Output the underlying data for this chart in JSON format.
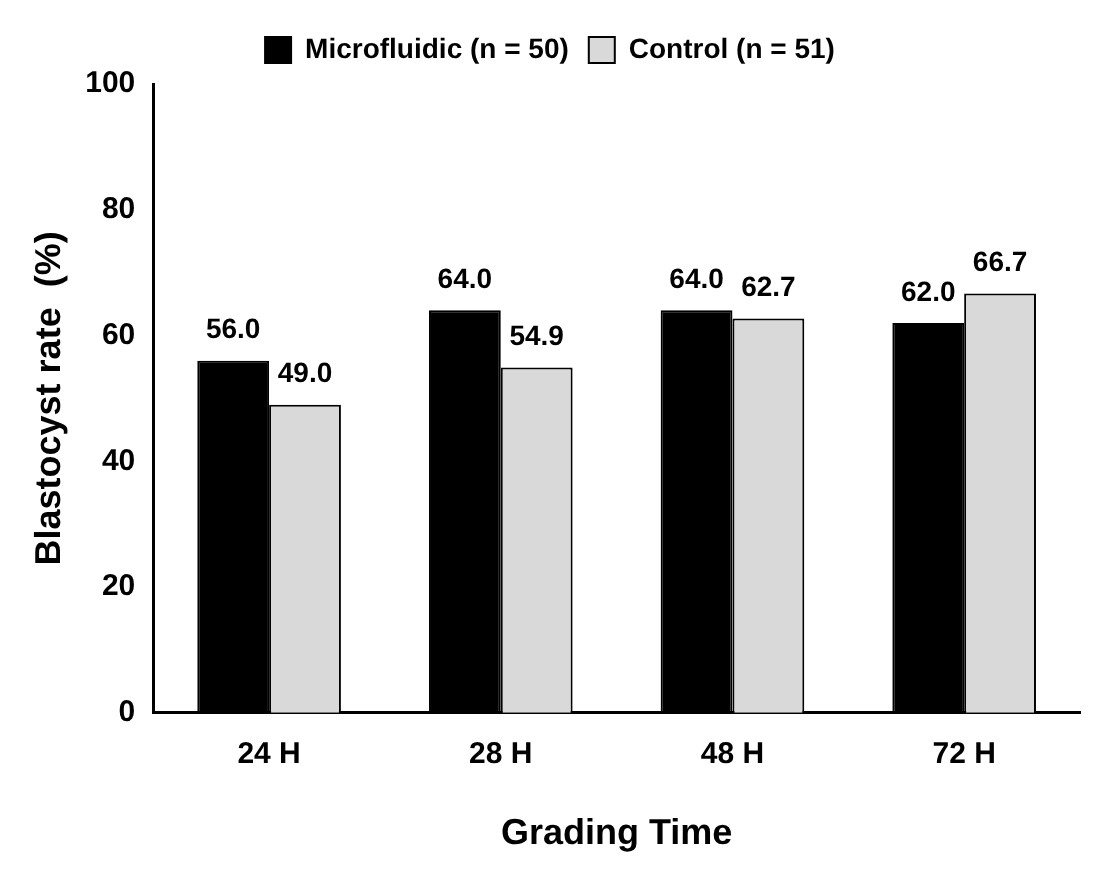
{
  "chart_data": {
    "type": "bar",
    "xlabel": "Grading Time",
    "ylabel": "Blastocyst rate  (%)",
    "categories": [
      "24 H",
      "28 H",
      "48 H",
      "72 H"
    ],
    "series": [
      {
        "name": "Microfluidic (n = 50)",
        "color": "#000000",
        "values": [
          56.0,
          64.0,
          64.0,
          62.0
        ],
        "value_labels": [
          "56.0",
          "64.0",
          "64.0",
          "62.0"
        ]
      },
      {
        "name": "Control (n = 51)",
        "color": "#d9d9d9",
        "values": [
          49.0,
          54.9,
          62.7,
          66.7
        ],
        "value_labels": [
          "49.0",
          "54.9",
          "62.7",
          "66.7"
        ]
      }
    ],
    "ylim": [
      0,
      100
    ],
    "yticks": [
      0,
      20,
      40,
      60,
      80,
      100
    ],
    "grid": false,
    "legend": "top"
  }
}
